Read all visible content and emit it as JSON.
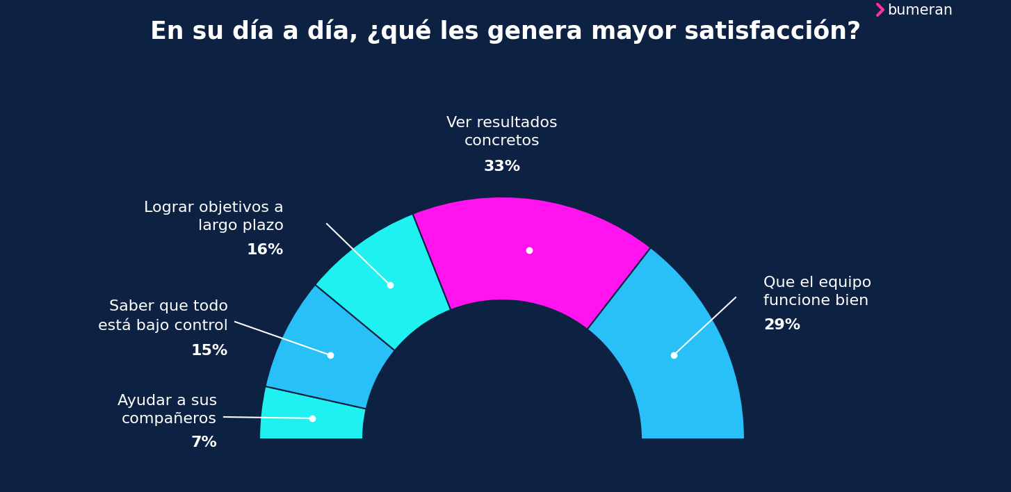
{
  "chart_data": {
    "type": "pie",
    "title": "En su día a día, ¿qué les genera mayor satisfacción?",
    "categories": [
      "Ayudar a sus\ncompañeros",
      "Saber que todo\nestá bajo control",
      "Lograr objetivos a\nlargo plazo",
      "Ver resultados\nconcretos",
      "Que el equipo\nfuncione bien"
    ],
    "values": [
      7,
      15,
      16,
      33,
      29
    ],
    "value_labels": [
      "7%",
      "15%",
      "16%",
      "33%",
      "29%"
    ],
    "colors": [
      "#1ff0f0",
      "#29c0f7",
      "#1ff0f0",
      "#ff14f0",
      "#29c0f7"
    ],
    "data_labels": true,
    "annotations": [
      "bumeran"
    ]
  }
}
